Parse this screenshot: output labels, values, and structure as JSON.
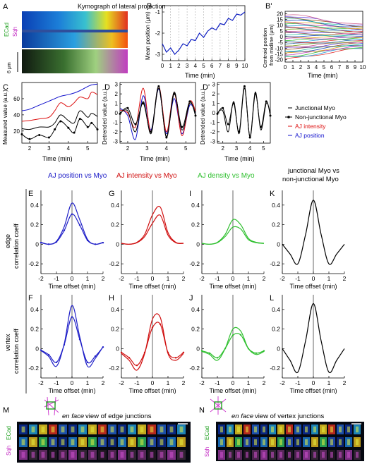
{
  "panels": {
    "A": {
      "letter": "A",
      "title": "Kymograph of lateral projection",
      "label_ecad": "ECad",
      "label_sqh": "Sqh",
      "scale": "6 μm"
    },
    "B": {
      "letter": "B",
      "ylabel": "Mean position (μm)",
      "xlabel": "Time (min)",
      "xticks": [
        "0",
        "1",
        "2",
        "3",
        "4",
        "5",
        "6",
        "7",
        "8",
        "9",
        "10"
      ],
      "yticks": [
        "-1",
        "-2",
        "-3"
      ]
    },
    "Bp": {
      "letter": "B'",
      "ylabel": "Centroid position from midline (μm)",
      "xlabel": "Time (min)",
      "xticks": [
        "0",
        "1",
        "2",
        "3",
        "4",
        "5",
        "6",
        "7",
        "8",
        "9",
        "10"
      ],
      "yticks": [
        "20",
        "15",
        "10",
        "5",
        "0",
        "-5",
        "-10",
        "-15",
        "-20"
      ]
    },
    "C": {
      "letter": "C",
      "ylabel": "Measured value (a.u.)",
      "xlabel": "Time (min)",
      "xticks": [
        "2",
        "3",
        "4",
        "5"
      ],
      "yticks": [
        "60",
        "40",
        "20"
      ]
    },
    "D": {
      "letter": "D",
      "ylabel": "Detrended value (a.u.)",
      "xlabel": "Time (min)",
      "xticks": [
        "2",
        "3",
        "4",
        "5"
      ],
      "yticks": [
        "3",
        "2",
        "1",
        "0",
        "-1",
        "-2",
        "-3"
      ]
    },
    "Dp": {
      "letter": "D'",
      "ylabel": "Detrended value (a.u.)",
      "xlabel": "Time (min)",
      "xticks": [
        "2",
        "3",
        "4",
        "5"
      ],
      "yticks": [
        "3",
        "2",
        "1",
        "0",
        "-1",
        "-2",
        "-3"
      ]
    },
    "legend": {
      "items": [
        {
          "label": "Junctional Myo",
          "color": "#000000"
        },
        {
          "label": "Non-junctional Myo",
          "color": "#000000"
        },
        {
          "label": "AJ intensity",
          "color": "#dd1111"
        },
        {
          "label": "AJ position",
          "color": "#1111cc"
        }
      ]
    },
    "corr": {
      "col_titles": [
        {
          "text": "AJ position vs Myo",
          "color": "#2020c8"
        },
        {
          "text": "AJ intensity vs Myo",
          "color": "#d01010"
        },
        {
          "text": "AJ density vs Myo",
          "color": "#30c030"
        },
        {
          "text": "junctional Myo vs non-junctional Myo",
          "color": "#000000"
        }
      ],
      "row_labels": [
        "edge correlation coeff",
        "vertex correlation coeff"
      ],
      "letters_top": [
        "E",
        "G",
        "I",
        "K"
      ],
      "letters_bottom": [
        "F",
        "H",
        "J",
        "L"
      ],
      "yticks": [
        "0.4",
        "0.2",
        "0",
        "-0.2"
      ],
      "xticks": [
        "-2",
        "-1",
        "0",
        "1",
        "2"
      ],
      "xlabel": "Time offset (min)"
    },
    "M": {
      "letter": "M",
      "title_em": "en face",
      "title_rest": " view of edge junctions",
      "label_ecad": "ECad",
      "label_sqh": "Sqh"
    },
    "N": {
      "letter": "N",
      "title_em": "en face",
      "title_rest": " view of vertex junctions",
      "label_ecad": "ECad",
      "label_sqh": "Sqh"
    }
  },
  "chart_data": [
    {
      "type": "line",
      "panel": "B",
      "title": "",
      "xlabel": "Time (min)",
      "ylabel": "Mean position (μm)",
      "xlim": [
        0,
        10
      ],
      "ylim": [
        -3.3,
        -0.7
      ],
      "series": [
        {
          "x": [
            0,
            0.5,
            1,
            1.5,
            2,
            2.5,
            3,
            3.5,
            4,
            4.5,
            5,
            5.5,
            6,
            6.5,
            7,
            7.5,
            8,
            8.5,
            9,
            9.5,
            10
          ],
          "y": [
            -2.5,
            -2.9,
            -2.7,
            -3.0,
            -2.8,
            -2.5,
            -2.6,
            -2.3,
            -2.35,
            -2.0,
            -2.2,
            -1.9,
            -1.75,
            -1.85,
            -1.55,
            -1.6,
            -1.3,
            -1.4,
            -1.1,
            -1.15,
            -1.0
          ]
        }
      ]
    },
    {
      "type": "line",
      "panel": "B'",
      "title": "",
      "xlabel": "Time (min)",
      "ylabel": "Centroid position from midline (μm)",
      "xlim": [
        0,
        10
      ],
      "ylim": [
        -22,
        22
      ]
    },
    {
      "type": "line",
      "panel": "C",
      "title": "",
      "xlabel": "Time (min)",
      "ylabel": "Measured value (a.u.)",
      "xlim": [
        1.6,
        5.5
      ],
      "ylim": [
        5,
        80
      ],
      "series": [
        {
          "name": "AJ position",
          "x": [
            1.6,
            2,
            2.5,
            3,
            3.3,
            3.6,
            4,
            4.3,
            4.6,
            5,
            5.2,
            5.5
          ],
          "y": [
            45,
            47,
            52,
            57,
            60,
            63,
            65,
            67,
            70,
            75,
            77,
            78
          ]
        },
        {
          "name": "AJ intensity",
          "x": [
            1.6,
            2,
            2.5,
            3,
            3.3,
            3.6,
            4,
            4.3,
            4.6,
            5,
            5.2,
            5.5
          ],
          "y": [
            32,
            33,
            35,
            37,
            45,
            55,
            50,
            55,
            62,
            60,
            68,
            65
          ]
        },
        {
          "name": "Junctional Myo",
          "x": [
            1.6,
            2,
            2.5,
            3,
            3.3,
            3.6,
            4,
            4.3,
            4.6,
            5,
            5.2,
            5.5
          ],
          "y": [
            23,
            22,
            25,
            25,
            30,
            40,
            33,
            30,
            45,
            37,
            42,
            38
          ]
        },
        {
          "name": "Non-junctional Myo",
          "x": [
            1.6,
            2,
            2.5,
            3,
            3.3,
            3.6,
            4,
            4.3,
            4.6,
            5,
            5.2,
            5.5
          ],
          "y": [
            16,
            10,
            15,
            12,
            22,
            32,
            24,
            18,
            35,
            25,
            30,
            22
          ]
        }
      ]
    },
    {
      "type": "line",
      "panel": "D",
      "title": "",
      "xlabel": "Time (min)",
      "ylabel": "Detrended value (a.u.)",
      "xlim": [
        1.6,
        5.5
      ],
      "ylim": [
        -3.2,
        3.2
      ],
      "series": [
        {
          "name": "AJ position",
          "x": [
            1.6,
            2.0,
            2.4,
            2.8,
            3.2,
            3.6,
            4.0,
            4.4,
            4.8,
            5.2,
            5.5
          ],
          "y": [
            0.5,
            -0.3,
            -2.8,
            1.8,
            -1.8,
            2.5,
            -2.2,
            1.5,
            -2.2,
            0.8,
            0.0
          ]
        },
        {
          "name": "AJ intensity",
          "x": [
            1.6,
            2.0,
            2.4,
            2.8,
            3.2,
            3.6,
            4.0,
            4.4,
            4.8,
            5.2,
            5.5
          ],
          "y": [
            0.3,
            0.0,
            -1.5,
            2.6,
            -2.0,
            2.8,
            -2.0,
            2.1,
            -2.4,
            1.2,
            0.2
          ]
        },
        {
          "name": "Junctional Myo",
          "x": [
            1.6,
            2.0,
            2.4,
            2.8,
            3.2,
            3.6,
            4.0,
            4.4,
            4.8,
            5.2,
            5.5
          ],
          "y": [
            0.0,
            0.2,
            -2.0,
            1.2,
            -2.2,
            2.6,
            -2.5,
            2.2,
            -1.8,
            1.0,
            0.0
          ]
        },
        {
          "name": "Non-junctional Myo",
          "x": [
            1.6,
            2.0,
            2.4,
            2.8,
            3.2,
            3.6,
            4.0,
            4.4,
            4.8,
            5.2,
            5.5
          ],
          "y": [
            -0.1,
            0.5,
            -1.2,
            1.0,
            -2.0,
            2.8,
            -2.6,
            2.0,
            -1.5,
            1.2,
            -0.3
          ]
        }
      ]
    },
    {
      "type": "line",
      "panel": "D'",
      "title": "",
      "xlabel": "Time (min)",
      "ylabel": "Detrended value (a.u.)",
      "xlim": [
        1.6,
        5.5
      ],
      "ylim": [
        -3.2,
        3.2
      ],
      "series": [
        {
          "name": "Junctional Myo",
          "x": [
            1.6,
            2.0,
            2.4,
            2.8,
            3.2,
            3.6,
            4.0,
            4.4,
            4.8,
            5.2,
            5.5
          ],
          "y": [
            0.0,
            0.2,
            -2.0,
            1.2,
            -2.2,
            2.6,
            -2.5,
            2.2,
            -1.8,
            1.0,
            0.0
          ]
        },
        {
          "name": "Non-junctional Myo",
          "x": [
            1.6,
            2.0,
            2.4,
            2.8,
            3.2,
            3.6,
            4.0,
            4.4,
            4.8,
            5.2,
            5.5
          ],
          "y": [
            -0.1,
            0.5,
            -1.2,
            1.0,
            -2.0,
            2.8,
            -2.6,
            2.0,
            -1.5,
            1.2,
            -0.3
          ]
        }
      ]
    },
    {
      "type": "line",
      "panel": "E-L",
      "title": "",
      "xlabel": "Time offset (min)",
      "ylabel": "correlation coeff",
      "xlim": [
        -2,
        2
      ],
      "ylim": [
        -0.3,
        0.55
      ],
      "series": [
        {
          "name": "E",
          "x": [
            -2,
            -1.5,
            -1,
            -0.5,
            0,
            0.5,
            1,
            1.5,
            2
          ],
          "y": [
            0.02,
            0.0,
            0.03,
            0.18,
            0.42,
            0.25,
            0.05,
            0.0,
            0.02
          ]
        },
        {
          "name": "F",
          "x": [
            -2,
            -1.5,
            -1,
            -0.5,
            0,
            0.5,
            1,
            1.5,
            2
          ],
          "y": [
            -0.02,
            -0.08,
            -0.18,
            0.05,
            0.44,
            0.12,
            -0.18,
            -0.1,
            0.02
          ]
        },
        {
          "name": "G",
          "x": [
            -2,
            -1.5,
            -1,
            -0.5,
            0,
            0.5,
            1,
            1.5,
            2
          ],
          "y": [
            0.01,
            0.0,
            0.02,
            0.1,
            0.3,
            0.38,
            0.12,
            0.02,
            0.01
          ]
        },
        {
          "name": "H",
          "x": [
            -2,
            -1.5,
            -1,
            -0.5,
            0,
            0.5,
            1,
            1.5,
            2
          ],
          "y": [
            -0.05,
            -0.12,
            -0.22,
            -0.05,
            0.3,
            0.32,
            -0.05,
            -0.12,
            -0.05
          ]
        },
        {
          "name": "I",
          "x": [
            -2,
            -1.5,
            -1,
            -0.5,
            0,
            0.5,
            1,
            1.5,
            2
          ],
          "y": [
            0.01,
            0.0,
            0.02,
            0.1,
            0.25,
            0.2,
            0.06,
            0.02,
            0.01
          ]
        },
        {
          "name": "J",
          "x": [
            -2,
            -1.5,
            -1,
            -0.5,
            0,
            0.5,
            1,
            1.5,
            2
          ],
          "y": [
            -0.03,
            -0.06,
            -0.12,
            0.0,
            0.2,
            0.18,
            0.0,
            -0.06,
            -0.03
          ]
        },
        {
          "name": "K",
          "x": [
            -2,
            -1.5,
            -1,
            -0.5,
            0,
            0.5,
            1,
            1.5,
            2
          ],
          "y": [
            0.0,
            -0.1,
            -0.2,
            0.1,
            0.45,
            0.1,
            -0.2,
            -0.1,
            0.0
          ]
        },
        {
          "name": "L",
          "x": [
            -2,
            -1.5,
            -1,
            -0.5,
            0,
            0.5,
            1,
            1.5,
            2
          ],
          "y": [
            0.0,
            -0.12,
            -0.24,
            0.08,
            0.46,
            0.08,
            -0.24,
            -0.12,
            0.0
          ]
        }
      ]
    }
  ]
}
